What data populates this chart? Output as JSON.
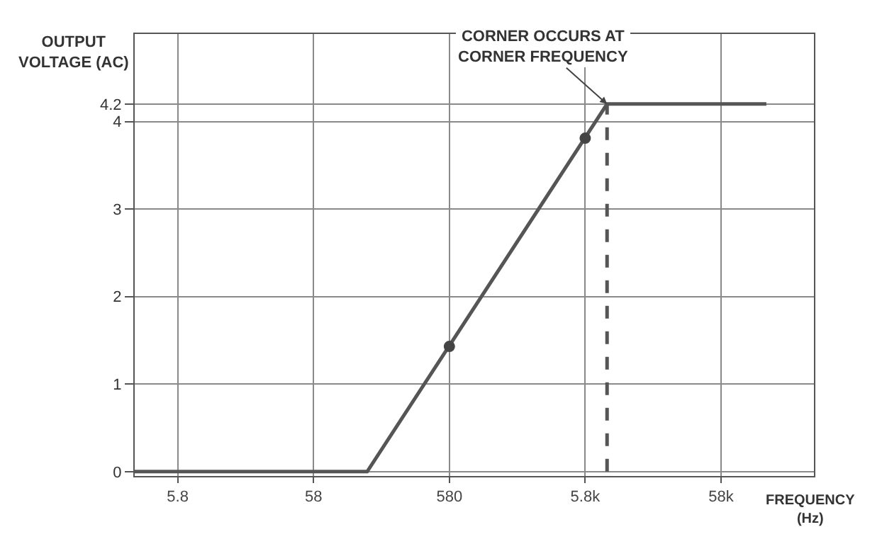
{
  "chart_data": {
    "type": "line",
    "xlabel": "FREQUENCY\n(Hz)",
    "ylabel": "OUTPUT\nVOLTAGE (AC)",
    "log": "x",
    "xlim": [
      2.8,
      280000
    ],
    "ylim": [
      -0.05,
      5
    ],
    "xticks": [
      5.8,
      58,
      580,
      {
        "value": 5800,
        "label": "5.8k"
      },
      {
        "value": 58000,
        "label": "58k"
      }
    ],
    "yticks": [
      0,
      1,
      2,
      3,
      4,
      4.2
    ],
    "grid": true,
    "marker": "none",
    "line_style": "solid",
    "series": [
      {
        "color": "#555555",
        "x": [
          2.8,
          144,
          8400,
          125000
        ],
        "values": [
          0,
          0,
          4.2,
          4.2
        ]
      },
      {
        "type": "scatter",
        "marker": "circle",
        "color": "#444444",
        "x": [
          580,
          5800
        ],
        "values": [
          1.43,
          3.81
        ]
      },
      {
        "color": "#555555",
        "line_style": "dashed",
        "x": [
          8400,
          8400
        ],
        "values": [
          0,
          4.2
        ]
      }
    ],
    "annotations": [
      {
        "text": "CORNER OCCURS AT\nCORNER FREQUENCY",
        "x": 8400,
        "y": 4.2
      }
    ]
  }
}
